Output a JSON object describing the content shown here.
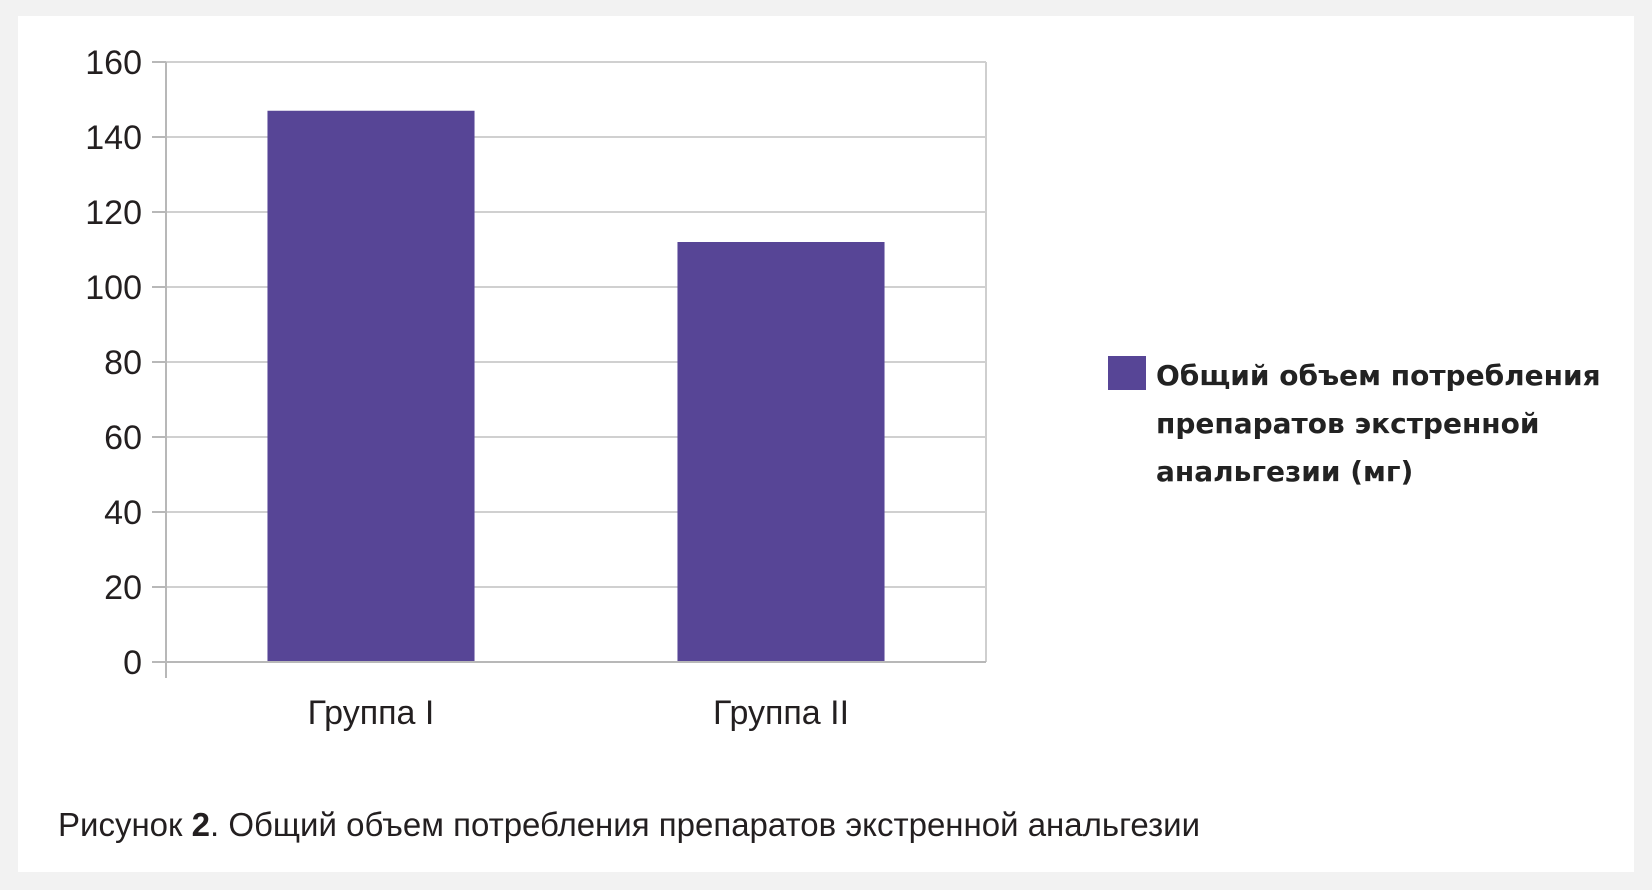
{
  "chart_data": {
    "type": "bar",
    "categories": [
      "Группа I",
      "Группа II"
    ],
    "series": [
      {
        "name": "Общий объем потребления препаратов экстренной анальгезии (мг)",
        "values": [
          147,
          112
        ],
        "color": "#574596"
      }
    ],
    "ylim": [
      0,
      160
    ],
    "yticks": [
      "0",
      "20",
      "40",
      "60",
      "80",
      "100",
      "120",
      "140",
      "160"
    ],
    "grid": true,
    "legend_position": "right"
  },
  "caption": {
    "prefix": "Рисунок",
    "number": "2",
    "text": ". Общий объем потребления препаратов экстренной анальгезии"
  }
}
